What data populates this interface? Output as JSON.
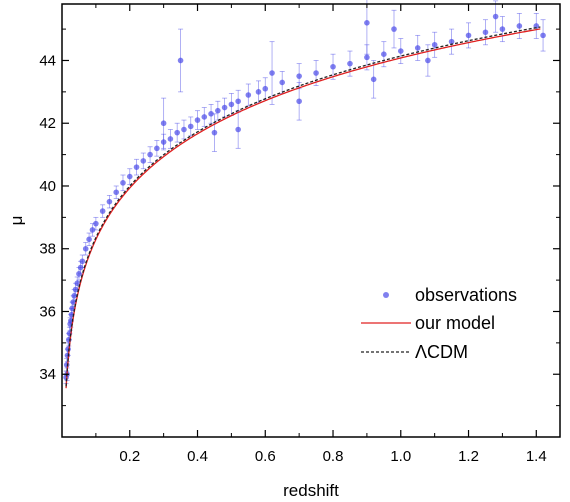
{
  "chart_data": {
    "type": "scatter",
    "xlabel": "redshift",
    "ylabel": "μ",
    "xlim": [
      0.0,
      1.47
    ],
    "ylim": [
      32.0,
      45.8
    ],
    "xticks": [
      {
        "value": 0.2,
        "label": "0.2"
      },
      {
        "value": 0.4,
        "label": "0.4"
      },
      {
        "value": 0.6,
        "label": "0.6"
      },
      {
        "value": 0.8,
        "label": "0.8"
      },
      {
        "value": 1.0,
        "label": "1.0"
      },
      {
        "value": 1.2,
        "label": "1.2"
      },
      {
        "value": 1.4,
        "label": "1.4"
      }
    ],
    "yticks": [
      {
        "value": 34,
        "label": "34"
      },
      {
        "value": 36,
        "label": "36"
      },
      {
        "value": 38,
        "label": "38"
      },
      {
        "value": 40,
        "label": "40"
      },
      {
        "value": 42,
        "label": "42"
      },
      {
        "value": 44,
        "label": "44"
      }
    ],
    "legend_position": "lower-right",
    "series": [
      {
        "name": "observations",
        "kind": "points-with-errorbars",
        "color": "#4a4ae8",
        "points": [
          [
            0.012,
            33.9,
            0.2
          ],
          [
            0.014,
            34.3,
            0.2
          ],
          [
            0.015,
            34.0,
            0.2
          ],
          [
            0.016,
            34.6,
            0.2
          ],
          [
            0.018,
            34.8,
            0.2
          ],
          [
            0.02,
            35.1,
            0.2
          ],
          [
            0.022,
            35.3,
            0.2
          ],
          [
            0.024,
            35.6,
            0.2
          ],
          [
            0.026,
            35.7,
            0.2
          ],
          [
            0.028,
            35.9,
            0.2
          ],
          [
            0.03,
            36.1,
            0.2
          ],
          [
            0.033,
            36.3,
            0.2
          ],
          [
            0.036,
            36.5,
            0.2
          ],
          [
            0.04,
            36.7,
            0.2
          ],
          [
            0.045,
            36.9,
            0.2
          ],
          [
            0.05,
            37.2,
            0.2
          ],
          [
            0.055,
            37.4,
            0.2
          ],
          [
            0.06,
            37.6,
            0.2
          ],
          [
            0.07,
            38.0,
            0.2
          ],
          [
            0.08,
            38.3,
            0.2
          ],
          [
            0.09,
            38.6,
            0.2
          ],
          [
            0.1,
            38.8,
            0.2
          ],
          [
            0.12,
            39.2,
            0.2
          ],
          [
            0.14,
            39.5,
            0.2
          ],
          [
            0.16,
            39.8,
            0.2
          ],
          [
            0.18,
            40.1,
            0.25
          ],
          [
            0.2,
            40.3,
            0.25
          ],
          [
            0.22,
            40.6,
            0.25
          ],
          [
            0.24,
            40.8,
            0.25
          ],
          [
            0.26,
            41.0,
            0.25
          ],
          [
            0.28,
            41.2,
            0.25
          ],
          [
            0.3,
            41.4,
            0.25
          ],
          [
            0.32,
            41.5,
            0.3
          ],
          [
            0.34,
            41.7,
            0.3
          ],
          [
            0.36,
            41.8,
            0.3
          ],
          [
            0.38,
            41.9,
            0.3
          ],
          [
            0.4,
            42.1,
            0.3
          ],
          [
            0.42,
            42.2,
            0.3
          ],
          [
            0.44,
            42.3,
            0.3
          ],
          [
            0.46,
            42.4,
            0.3
          ],
          [
            0.48,
            42.5,
            0.3
          ],
          [
            0.5,
            42.6,
            0.35
          ],
          [
            0.52,
            42.7,
            0.35
          ],
          [
            0.55,
            42.9,
            0.35
          ],
          [
            0.58,
            43.0,
            0.35
          ],
          [
            0.6,
            43.1,
            0.35
          ],
          [
            0.65,
            43.3,
            0.35
          ],
          [
            0.7,
            43.5,
            0.4
          ],
          [
            0.75,
            43.6,
            0.4
          ],
          [
            0.8,
            43.8,
            0.4
          ],
          [
            0.85,
            43.9,
            0.4
          ],
          [
            0.9,
            44.1,
            0.4
          ],
          [
            0.95,
            44.2,
            0.4
          ],
          [
            1.0,
            44.3,
            0.4
          ],
          [
            1.05,
            44.4,
            0.4
          ],
          [
            1.1,
            44.5,
            0.4
          ],
          [
            1.15,
            44.6,
            0.4
          ],
          [
            1.2,
            44.8,
            0.4
          ],
          [
            1.25,
            44.9,
            0.4
          ],
          [
            1.3,
            45.0,
            0.4
          ],
          [
            1.35,
            45.1,
            0.4
          ],
          [
            1.4,
            45.1,
            0.4
          ],
          [
            0.62,
            43.6,
            1.0
          ],
          [
            0.9,
            45.2,
            1.0
          ],
          [
            0.35,
            44.0,
            1.0
          ],
          [
            0.3,
            42.0,
            0.8
          ],
          [
            1.28,
            45.4,
            0.5
          ],
          [
            1.42,
            44.8,
            0.5
          ],
          [
            0.45,
            41.7,
            0.6
          ],
          [
            0.7,
            42.7,
            0.6
          ],
          [
            0.52,
            41.8,
            0.6
          ],
          [
            0.92,
            43.4,
            0.6
          ],
          [
            1.08,
            44.0,
            0.5
          ],
          [
            0.98,
            45.0,
            0.6
          ]
        ]
      },
      {
        "name": "our model",
        "kind": "line",
        "color": "#e02020",
        "dash": "solid",
        "params": {
          "H0": 70,
          "Om": 0.3,
          "offset": -0.02
        }
      },
      {
        "name": "ΛCDM",
        "kind": "line",
        "color": "#222222",
        "dash": "dashed",
        "params": {
          "H0": 70,
          "Om": 0.3,
          "offset": 0.04
        }
      }
    ]
  }
}
